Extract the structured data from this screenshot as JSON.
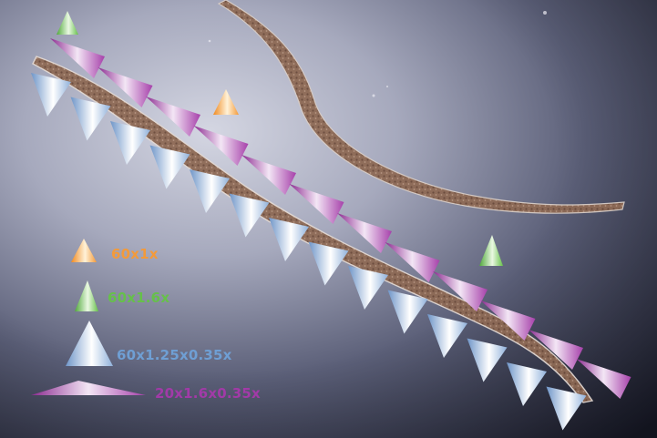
{
  "legend": {
    "items": [
      {
        "label": "60x1x",
        "marker": "cone-orange-icon",
        "color": "#f39a3a"
      },
      {
        "label": "60x1.6x",
        "marker": "cone-green-icon",
        "color": "#66c04a"
      },
      {
        "label": "60x1.25x0.35x",
        "marker": "cone-blue-icon",
        "color": "#6f9fd4"
      },
      {
        "label": "20x1.6x0.35x",
        "marker": "cone-purple-icon",
        "color": "#a23aa8"
      }
    ]
  }
}
